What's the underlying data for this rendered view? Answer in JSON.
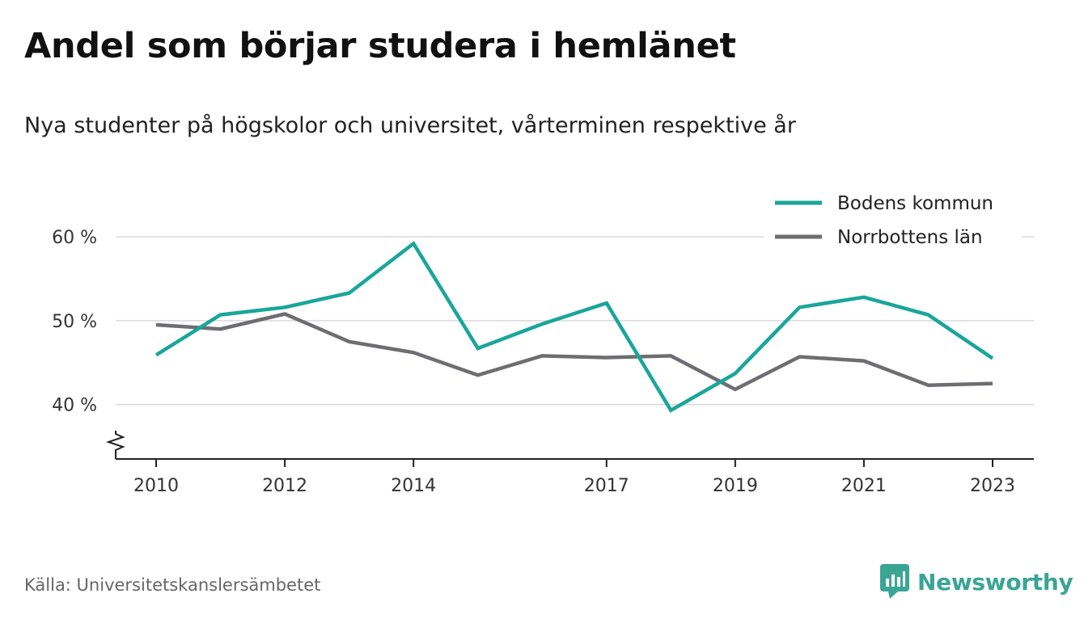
{
  "title": "Andel som börjar studera i hemlänet",
  "subtitle": "Nya studenter på högskolor och universitet, vårterminen respektive år",
  "source": "Källa: Universitetskanslersämbetet",
  "brand": {
    "name": "Newsworthy",
    "icon": "newsworthy-logo-icon",
    "color": "#3aa595"
  },
  "chart_data": {
    "type": "line",
    "title": "Andel som börjar studera i hemlänet",
    "subtitle": "Nya studenter på högskolor och universitet, vårterminen respektive år",
    "xlabel": "",
    "ylabel": "",
    "x": [
      2010,
      2011,
      2012,
      2013,
      2014,
      2015,
      2016,
      2017,
      2018,
      2019,
      2020,
      2021,
      2022,
      2023
    ],
    "x_ticks": [
      2010,
      2012,
      2014,
      2017,
      2019,
      2021,
      2023
    ],
    "x_tick_labels": [
      "2010",
      "2012",
      "2014",
      "2017",
      "2019",
      "2021",
      "2023"
    ],
    "y_ticks": [
      40,
      50,
      60
    ],
    "y_tick_labels": [
      "40 %",
      "50 %",
      "60 %"
    ],
    "ylim": [
      33.5,
      63
    ],
    "y_axis_break": true,
    "grid": true,
    "legend_position": "top-right",
    "series": [
      {
        "name": "Bodens kommun",
        "color": "#1aa699",
        "values": [
          45.9,
          50.7,
          51.6,
          53.3,
          59.2,
          46.7,
          49.6,
          52.1,
          39.3,
          43.7,
          51.6,
          52.8,
          50.7,
          45.5
        ]
      },
      {
        "name": "Norrbottens län",
        "color": "#6e6d72",
        "values": [
          49.5,
          49.0,
          50.8,
          47.5,
          46.2,
          43.5,
          45.8,
          45.6,
          45.8,
          41.8,
          45.7,
          45.2,
          42.3,
          42.5
        ]
      }
    ]
  }
}
